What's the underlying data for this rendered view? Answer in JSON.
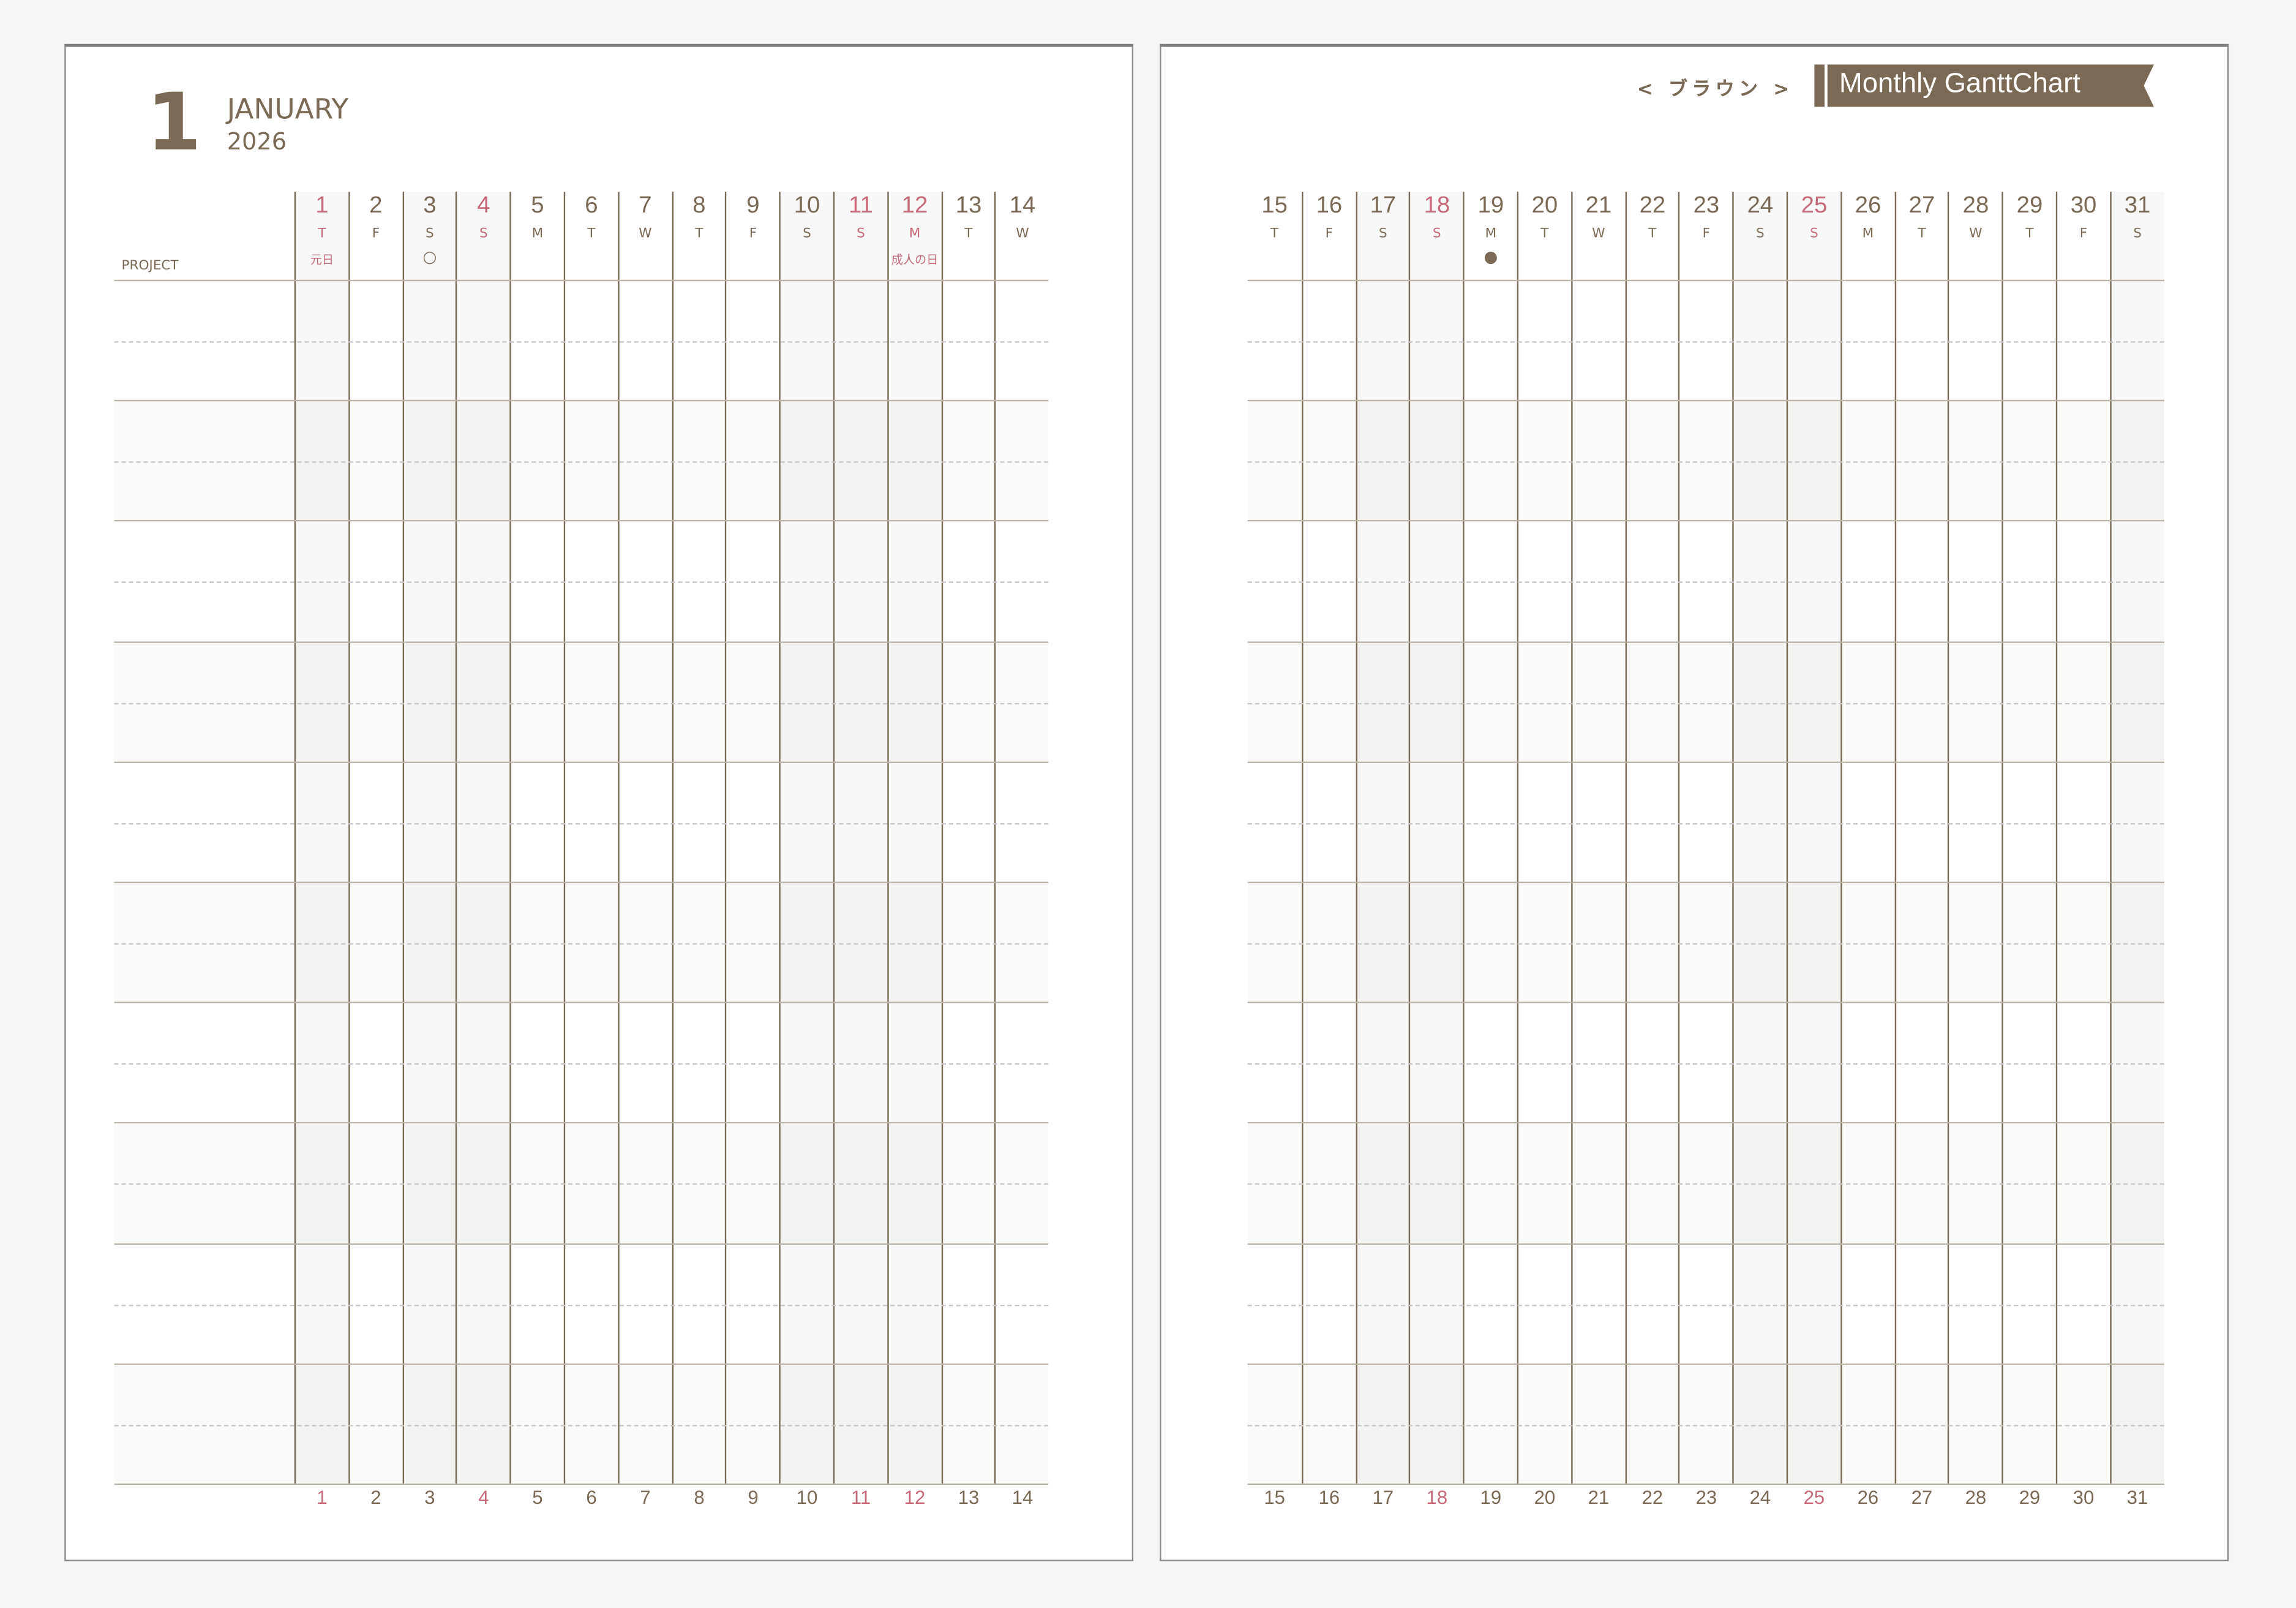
{
  "header": {
    "month_number": "1",
    "month_name": "JANUARY",
    "year": "2026",
    "project_label": "PROJECT",
    "color_name": "< ブラウン >",
    "title": "Monthly GanttChart"
  },
  "colors": {
    "brown": "#7a6a55",
    "holiday_red": "#c8697a",
    "shade": "#f8f8f8"
  },
  "rows": 10,
  "left_days": [
    {
      "num": "1",
      "dow": "T",
      "red": true,
      "shaded": true,
      "note": "元日"
    },
    {
      "num": "2",
      "dow": "F"
    },
    {
      "num": "3",
      "dow": "S",
      "shaded": true,
      "mark": "○"
    },
    {
      "num": "4",
      "dow": "S",
      "red": true,
      "shaded": true
    },
    {
      "num": "5",
      "dow": "M"
    },
    {
      "num": "6",
      "dow": "T"
    },
    {
      "num": "7",
      "dow": "W"
    },
    {
      "num": "8",
      "dow": "T"
    },
    {
      "num": "9",
      "dow": "F"
    },
    {
      "num": "10",
      "dow": "S",
      "shaded": true
    },
    {
      "num": "11",
      "dow": "S",
      "red": true,
      "shaded": true
    },
    {
      "num": "12",
      "dow": "M",
      "red": true,
      "shaded": true,
      "note": "成人の日"
    },
    {
      "num": "13",
      "dow": "T"
    },
    {
      "num": "14",
      "dow": "W"
    }
  ],
  "right_days": [
    {
      "num": "15",
      "dow": "T"
    },
    {
      "num": "16",
      "dow": "F"
    },
    {
      "num": "17",
      "dow": "S",
      "shaded": true
    },
    {
      "num": "18",
      "dow": "S",
      "red": true,
      "shaded": true
    },
    {
      "num": "19",
      "dow": "M",
      "mark": "●"
    },
    {
      "num": "20",
      "dow": "T"
    },
    {
      "num": "21",
      "dow": "W"
    },
    {
      "num": "22",
      "dow": "T"
    },
    {
      "num": "23",
      "dow": "F"
    },
    {
      "num": "24",
      "dow": "S",
      "shaded": true
    },
    {
      "num": "25",
      "dow": "S",
      "red": true,
      "shaded": true
    },
    {
      "num": "26",
      "dow": "M"
    },
    {
      "num": "27",
      "dow": "T"
    },
    {
      "num": "28",
      "dow": "W"
    },
    {
      "num": "29",
      "dow": "T"
    },
    {
      "num": "30",
      "dow": "F"
    },
    {
      "num": "31",
      "dow": "S",
      "shaded": true
    }
  ]
}
